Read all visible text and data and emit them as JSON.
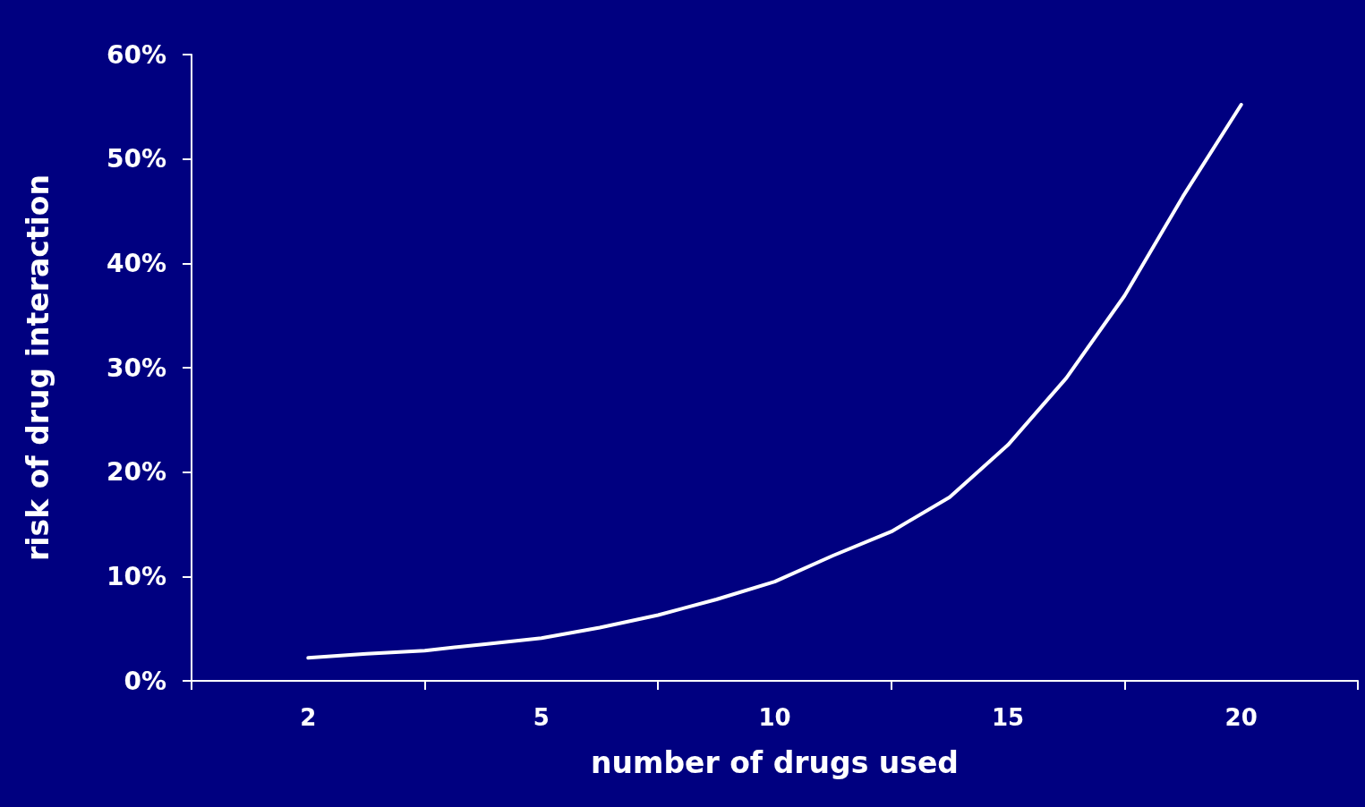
{
  "chart_data": {
    "type": "line",
    "xlabel": "number of drugs used",
    "ylabel": "risk of drug interaction",
    "categories": [
      null,
      null,
      "2",
      null,
      null,
      null,
      "5",
      null,
      null,
      null,
      "10",
      null,
      null,
      null,
      "15",
      null,
      null,
      null,
      "20",
      null,
      null
    ],
    "series": [
      {
        "color": "#ffffff",
        "values": [
          null,
          null,
          2.2,
          2.6,
          2.9,
          3.5,
          4.1,
          5.1,
          6.3,
          7.8,
          9.5,
          12.0,
          14.3,
          17.6,
          22.6,
          29.0,
          36.9,
          46.4,
          55.2,
          null,
          null
        ]
      }
    ],
    "ylim": [
      0,
      60
    ],
    "yticks": [
      {
        "value": 0,
        "label": "0%"
      },
      {
        "value": 10,
        "label": "10%"
      },
      {
        "value": 20,
        "label": "20%"
      },
      {
        "value": 30,
        "label": "30%"
      },
      {
        "value": 40,
        "label": "40%"
      },
      {
        "value": 50,
        "label": "50%"
      },
      {
        "value": 60,
        "label": "60%"
      }
    ],
    "grid": false,
    "marker": "none",
    "line_style": "solid"
  }
}
